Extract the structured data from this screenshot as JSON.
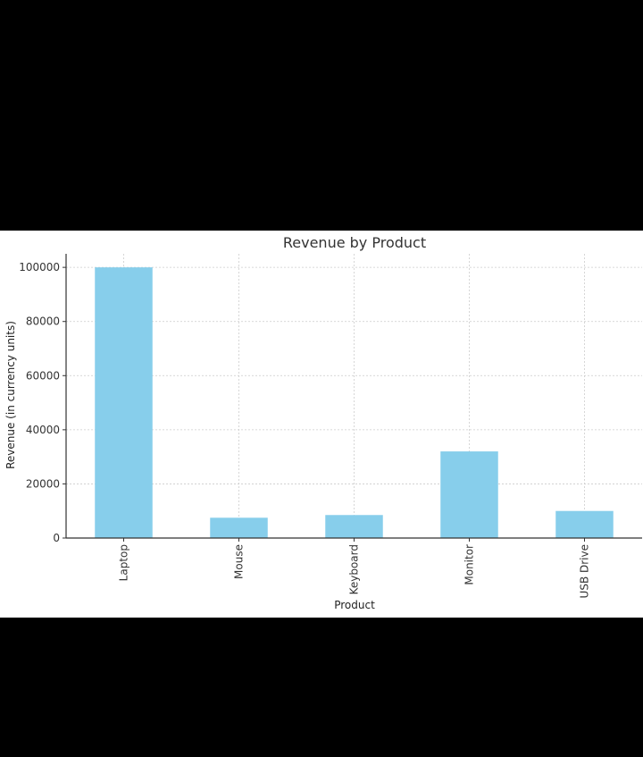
{
  "chart_data": {
    "type": "bar",
    "title": "Revenue by Product",
    "xlabel": "Product",
    "ylabel": "Revenue (in currency units)",
    "categories": [
      "Laptop",
      "Mouse",
      "Keyboard",
      "Monitor",
      "USB Drive"
    ],
    "values": [
      100000,
      7500,
      8500,
      32000,
      10000
    ],
    "ylim": [
      0,
      105000
    ],
    "yticks": [
      0,
      20000,
      40000,
      60000,
      80000,
      100000
    ],
    "ytick_labels": [
      "0",
      "20000",
      "40000",
      "60000",
      "80000",
      "100000"
    ],
    "grid": true,
    "bar_color": "#87ceeb",
    "grid_color": "#cccccc",
    "axis_color": "#333333"
  }
}
